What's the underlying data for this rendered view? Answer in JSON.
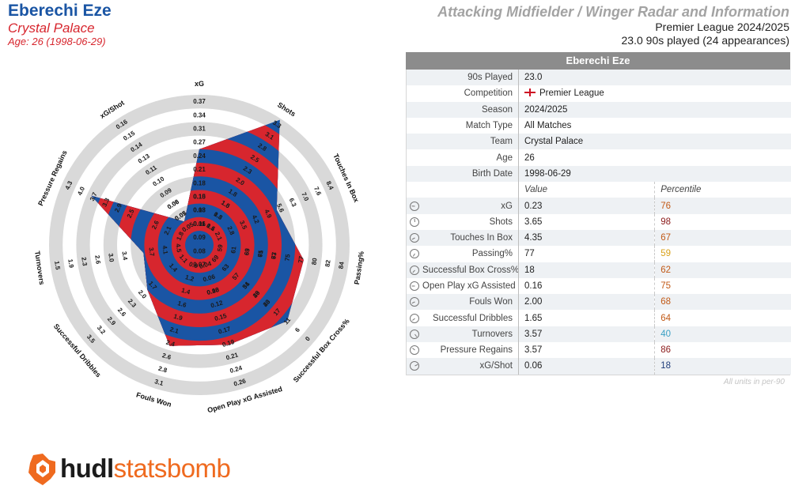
{
  "header": {
    "player": "Eberechi Eze",
    "club": "Crystal Palace",
    "age_line": "Age: 26 (1998-06-29)",
    "radar_title": "Attacking Midfielder / Winger Radar and Information",
    "competition_line": "Premier League 2024/2025",
    "played_line": "23.0 90s played (24 appearances)"
  },
  "panel": {
    "title": "Eberechi Eze",
    "info": [
      {
        "label": "90s Played",
        "value": "23.0"
      },
      {
        "label": "Competition",
        "value": "Premier League",
        "flag": true
      },
      {
        "label": "Season",
        "value": "2024/2025"
      },
      {
        "label": "Match Type",
        "value": "All Matches"
      },
      {
        "label": "Team",
        "value": "Crystal Palace"
      },
      {
        "label": "Age",
        "value": "26"
      },
      {
        "label": "Birth Date",
        "value": "1998-06-29"
      }
    ],
    "value_header": "Value",
    "percentile_header": "Percentile",
    "units_note": "All units in per-90"
  },
  "colors": {
    "blue": "#1a55a4",
    "red": "#d7262e",
    "ring_grey": "#d9d9d9",
    "pct_high": "#8b1a1a",
    "pct_midhigh": "#c25a17",
    "pct_mid": "#d9a21b",
    "pct_low": "#3aa0c4",
    "pct_vlow": "#1f3d7a"
  },
  "chart_data": {
    "type": "radar",
    "metrics": [
      {
        "name": "xG",
        "value": "0.23",
        "percentile": 76,
        "pct_color": "#c25a17",
        "frac": 0.6,
        "ticks": [
          "0.07",
          "0.08",
          "0.09",
          "0.11",
          "0.13",
          "0.15",
          "0.18",
          "0.21",
          "0.24",
          "0.27",
          "0.31",
          "0.34",
          "0.37"
        ]
      },
      {
        "name": "Shots",
        "value": "3.65",
        "percentile": 98,
        "pct_color": "#8b1a1a",
        "frac": 0.99,
        "ticks": [
          "1.1",
          "1.3",
          "1.5",
          "1.8",
          "2.0",
          "2.3",
          "2.5",
          "2.8",
          "3.1",
          "3.3"
        ]
      },
      {
        "name": "Touches In Box",
        "value": "4.35",
        "percentile": 67,
        "pct_color": "#c25a17",
        "frac": 0.52,
        "ticks": [
          "3.5",
          "4.2",
          "4.9",
          "5.6",
          "6.3",
          "7.0",
          "7.6",
          "8.4"
        ]
      },
      {
        "name": "Passing%",
        "value": "77",
        "percentile": 59,
        "pct_color": "#d9a21b",
        "frac": 0.67,
        "ticks": [
          "69",
          "71",
          "73",
          "75",
          "77",
          "80",
          "82",
          "84"
        ]
      },
      {
        "name": "Successful Box Cross%",
        "value": "18",
        "percentile": 62,
        "pct_color": "#c25a17",
        "frac": 0.75,
        "ticks": [
          "34",
          "29",
          "23",
          "17",
          "11",
          "6",
          "0"
        ]
      },
      {
        "name": "Open Play xG Assisted",
        "value": "0.16",
        "percentile": 75,
        "pct_color": "#c25a17",
        "frac": 0.66,
        "ticks": [
          "0.10",
          "0.12",
          "0.15",
          "0.17",
          "0.19",
          "0.21",
          "0.24",
          "0.26"
        ]
      },
      {
        "name": "Fouls Won",
        "value": "2.00",
        "percentile": 68,
        "pct_color": "#c25a17",
        "frac": 0.67,
        "ticks": [
          "1.4",
          "1.6",
          "1.9",
          "2.1",
          "2.4",
          "2.6",
          "2.8",
          "3.1"
        ]
      },
      {
        "name": "Successful Dribbles",
        "value": "1.65",
        "percentile": 64,
        "pct_color": "#c25a17",
        "frac": 0.4,
        "ticks": [
          "1.7",
          "2.0",
          "2.3",
          "2.6",
          "2.9",
          "3.2",
          "3.5"
        ]
      },
      {
        "name": "Turnovers",
        "value": "3.57",
        "percentile": 40,
        "pct_color": "#3aa0c4",
        "frac": 0.31,
        "ticks": [
          "3.4",
          "3.0",
          "2.6",
          "2.3",
          "1.9",
          "1.5"
        ]
      },
      {
        "name": "Pressure Regains",
        "value": "3.57",
        "percentile": 86,
        "pct_color": "#8b1a1a",
        "frac": 0.77,
        "ticks": [
          "2.5",
          "2.9",
          "3.3",
          "3.7",
          "4.0",
          "4.3"
        ]
      },
      {
        "name": "xG/Shot",
        "value": "0.06",
        "percentile": 18,
        "pct_color": "#1f3d7a",
        "frac": 0.1,
        "ticks": [
          "0.07",
          "0.08",
          "0.09",
          "0.10",
          "0.11",
          "0.13",
          "0.14",
          "0.15",
          "0.16"
        ]
      }
    ],
    "inner_ticks": [
      [
        "0.06",
        "0.08",
        "0.10"
      ],
      [
        "0.6",
        "0.8",
        "1.0"
      ],
      [
        "2.1",
        "2.8"
      ],
      [
        "59",
        "61",
        "63",
        "65",
        "67"
      ],
      [
        "69",
        "63",
        "57",
        "51",
        "46",
        "40"
      ],
      [
        "0.04",
        "0.06",
        "0.08"
      ],
      [
        "0.9",
        "1.2"
      ],
      [
        "1.1",
        "1.4"
      ],
      [
        "4.5",
        "4.1",
        "3.7"
      ],
      [
        "1.8",
        "2.1",
        "2.6"
      ],
      [
        "0.05",
        "0.05",
        "0.06"
      ]
    ],
    "ring_count": 10
  }
}
